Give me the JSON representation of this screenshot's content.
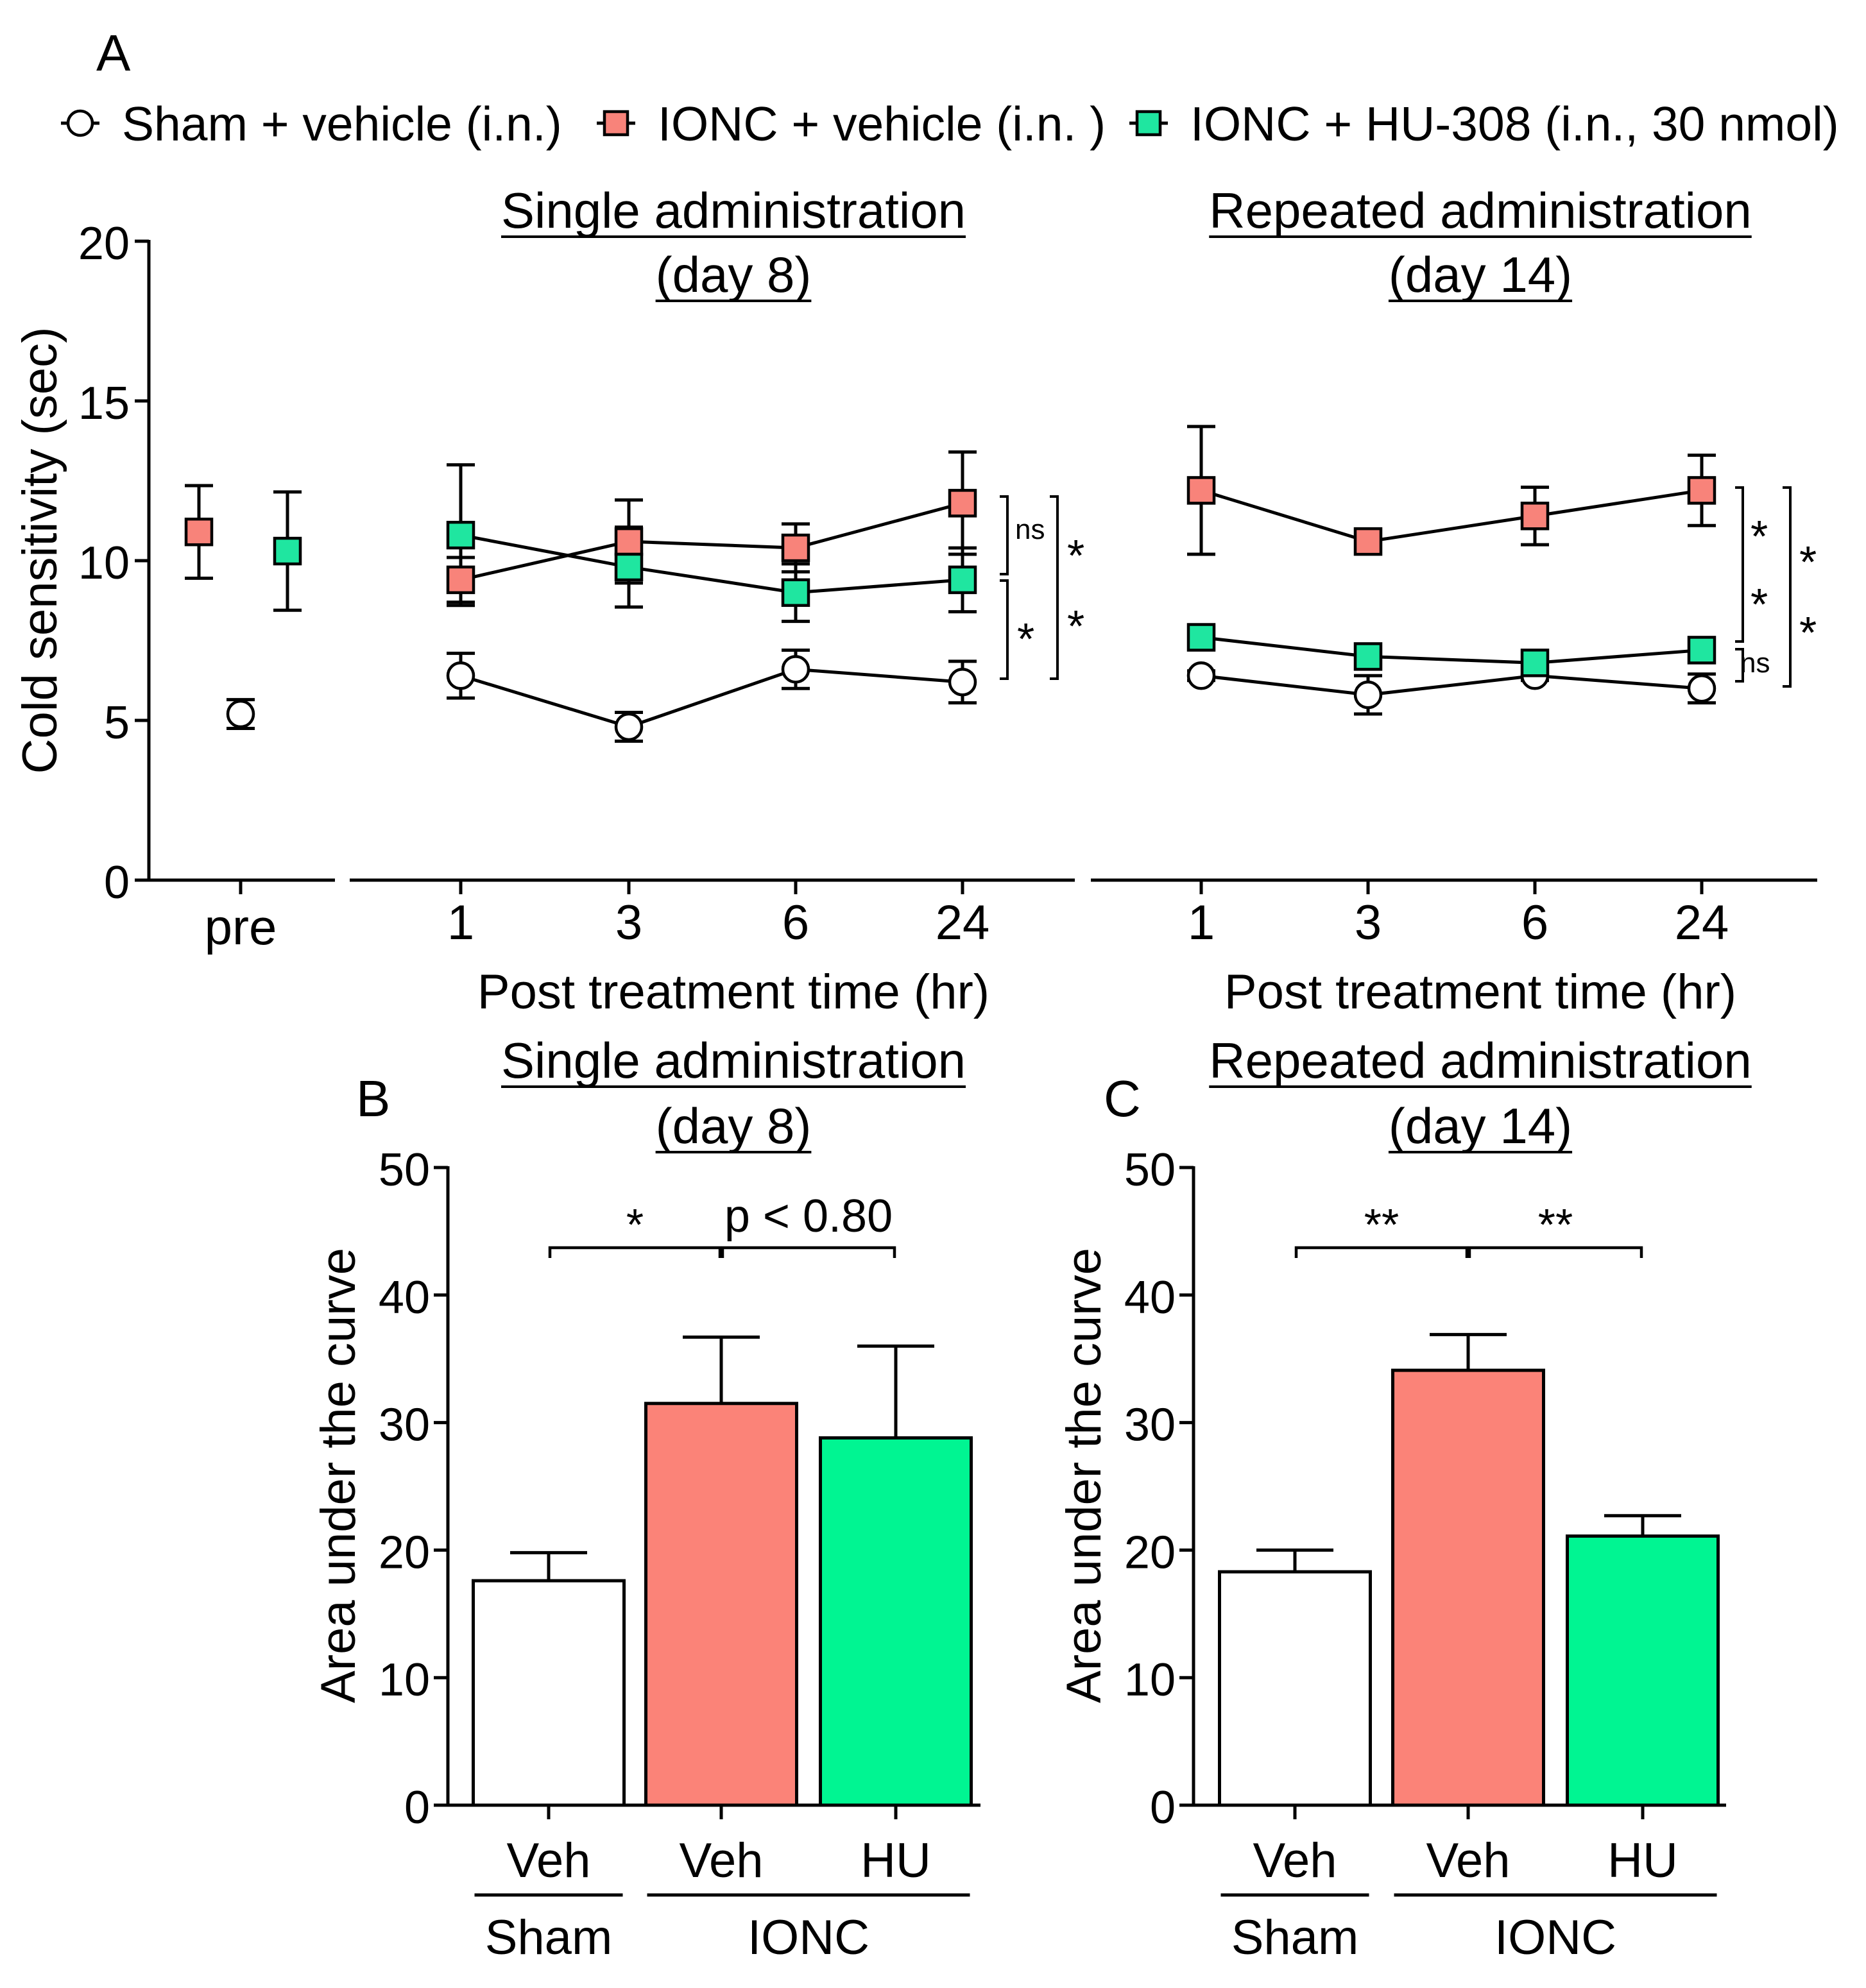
{
  "figure": {
    "panel_labels": {
      "a": "A",
      "b": "B",
      "c": "C"
    },
    "legend": [
      {
        "label": "Sham + vehicle (i.n.)",
        "marker": "circle",
        "color": "#ffffff"
      },
      {
        "label": "IONC + vehicle (i.n. )",
        "marker": "square",
        "color": "#f8837a"
      },
      {
        "label": "IONC + HU-308 (i.n., 30 nmol)",
        "marker": "square",
        "color": "#1fe6a0"
      }
    ]
  },
  "colors": {
    "sham": "#ffffff",
    "ionc_veh": "#f8837a",
    "ionc_hu": "#1fe6a0",
    "bar_ionc_veh": "#fb8378",
    "bar_ionc_hu": "#00f592",
    "line": "#000000"
  },
  "chart_data": [
    {
      "panel": "A",
      "type": "scatter",
      "ylabel": "Cold sensitivity (sec)",
      "ylim": [
        0,
        20
      ],
      "yticks": [
        "0",
        "5",
        "10",
        "15",
        "20"
      ],
      "baseline": {
        "category": "pre",
        "points": [
          {
            "series": "IONC + vehicle (i.n. )",
            "y": 10.9,
            "err": 1.45
          },
          {
            "series": "Sham + vehicle (i.n.)",
            "y": 5.2,
            "err": 0.45
          },
          {
            "series": "IONC + HU-308 (i.n., 30 nmol)",
            "y": 10.3,
            "err": 1.85
          }
        ]
      },
      "xlabel": "Post treatment time (hr)",
      "subplots": [
        {
          "title_line1": "Single administration",
          "title_line2": "(day 8)",
          "x": [
            "1",
            "3",
            "6",
            "24"
          ],
          "series": [
            {
              "name": "Sham + vehicle (i.n.)",
              "values": [
                6.4,
                4.8,
                6.6,
                6.2
              ],
              "errors": [
                0.7,
                0.45,
                0.6,
                0.65
              ]
            },
            {
              "name": "IONC + vehicle (i.n. )",
              "values": [
                9.4,
                10.6,
                10.4,
                11.8
              ],
              "errors": [
                0.7,
                1.3,
                0.75,
                1.6
              ]
            },
            {
              "name": "IONC + HU-308 (i.n., 30 nmol)",
              "values": [
                10.8,
                9.8,
                9.0,
                9.4
              ],
              "errors": [
                2.2,
                1.25,
                0.9,
                1.0
              ]
            }
          ],
          "significance": [
            {
              "label": "ns",
              "between": [
                "IONC + vehicle (i.n. )",
                "IONC + HU-308 (i.n., 30 nmol)"
              ]
            },
            {
              "label": "*",
              "between": [
                "IONC + HU-308 (i.n., 30 nmol)",
                "Sham + vehicle (i.n.)"
              ]
            },
            {
              "label": "*",
              "between": [
                "IONC + vehicle (i.n. )",
                "Sham + vehicle (i.n.)"
              ],
              "line2": "*"
            }
          ]
        },
        {
          "title_line1": "Repeated administration",
          "title_line2": "(day 14)",
          "x": [
            "1",
            "3",
            "6",
            "24"
          ],
          "series": [
            {
              "name": "Sham + vehicle (i.n.)",
              "values": [
                6.4,
                5.8,
                6.4,
                6.0
              ],
              "errors": [
                0.15,
                0.6,
                0.15,
                0.45
              ]
            },
            {
              "name": "IONC + vehicle (i.n. )",
              "values": [
                12.2,
                10.6,
                11.4,
                12.2
              ],
              "errors": [
                2.0,
                0.25,
                0.9,
                1.1
              ]
            },
            {
              "name": "IONC + HU-308 (i.n., 30 nmol)",
              "values": [
                7.6,
                7.0,
                6.8,
                7.2
              ],
              "errors": [
                0.2,
                0.3,
                0.3,
                0.3
              ]
            }
          ],
          "significance": [
            {
              "label": "*",
              "between": [
                "IONC + vehicle (i.n. )",
                "IONC + HU-308 (i.n., 30 nmol)"
              ],
              "line2": "*"
            },
            {
              "label": "ns",
              "between": [
                "IONC + HU-308 (i.n., 30 nmol)",
                "Sham + vehicle (i.n.)"
              ]
            },
            {
              "label": "*",
              "between": [
                "IONC + vehicle (i.n. )",
                "Sham + vehicle (i.n.)"
              ],
              "line2": "*"
            }
          ]
        }
      ]
    },
    {
      "panel": "B",
      "type": "bar",
      "title_line1": "Single administration",
      "title_line2": "(day 8)",
      "ylabel": "Area under the curve",
      "ylim": [
        0,
        50
      ],
      "yticks": [
        "0",
        "10",
        "20",
        "30",
        "40",
        "50"
      ],
      "categories": [
        "Veh",
        "Veh",
        "HU"
      ],
      "groups": [
        {
          "label": "Sham",
          "members": [
            0
          ]
        },
        {
          "label": "IONC",
          "members": [
            1,
            2
          ]
        }
      ],
      "values": [
        17.6,
        31.5,
        28.8
      ],
      "errors": [
        2.2,
        5.2,
        7.2
      ],
      "comparisons": [
        {
          "label": "*",
          "between": [
            0,
            1
          ]
        },
        {
          "label": "p < 0.80",
          "between": [
            1,
            2
          ]
        }
      ]
    },
    {
      "panel": "C",
      "type": "bar",
      "title_line1": "Repeated administration",
      "title_line2": "(day 14)",
      "ylabel": "Area under the curve",
      "ylim": [
        0,
        50
      ],
      "yticks": [
        "0",
        "10",
        "20",
        "30",
        "40",
        "50"
      ],
      "categories": [
        "Veh",
        "Veh",
        "HU"
      ],
      "groups": [
        {
          "label": "Sham",
          "members": [
            0
          ]
        },
        {
          "label": "IONC",
          "members": [
            1,
            2
          ]
        }
      ],
      "values": [
        18.3,
        34.1,
        21.1
      ],
      "errors": [
        1.7,
        2.8,
        1.6
      ],
      "comparisons": [
        {
          "label": "**",
          "between": [
            0,
            1
          ]
        },
        {
          "label": "**",
          "between": [
            1,
            2
          ]
        }
      ]
    }
  ]
}
